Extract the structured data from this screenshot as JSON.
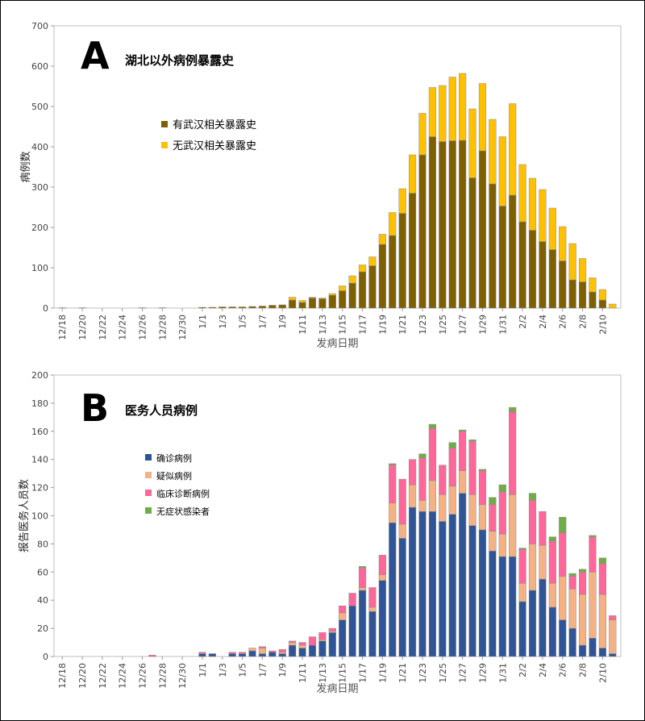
{
  "chart_data": [
    {
      "type": "bar",
      "stacked": true,
      "panel_letter": "A",
      "title": "湖北以外病例暴露史",
      "xlabel": "发病日期",
      "ylabel": "病例数",
      "ylim": [
        0,
        700
      ],
      "yticks": [
        0,
        100,
        200,
        300,
        400,
        500,
        600,
        700
      ],
      "grid": false,
      "legend_placement": "top-left",
      "tick_labels": [
        "12/18",
        "12/20",
        "12/22",
        "12/24",
        "12/26",
        "12/28",
        "12/30",
        "1/1",
        "1/3",
        "1/5",
        "1/7",
        "1/9",
        "1/11",
        "1/13",
        "1/15",
        "1/17",
        "1/19",
        "1/21",
        "1/23",
        "1/25",
        "1/27",
        "1/29",
        "1/31",
        "2/2",
        "2/4",
        "2/6",
        "2/8",
        "2/10"
      ],
      "categories": [
        "12/18",
        "12/19",
        "12/20",
        "12/21",
        "12/22",
        "12/23",
        "12/24",
        "12/25",
        "12/26",
        "12/27",
        "12/28",
        "12/29",
        "12/30",
        "12/31",
        "1/1",
        "1/2",
        "1/3",
        "1/4",
        "1/5",
        "1/6",
        "1/7",
        "1/8",
        "1/9",
        "1/10",
        "1/11",
        "1/12",
        "1/13",
        "1/14",
        "1/15",
        "1/16",
        "1/17",
        "1/18",
        "1/19",
        "1/20",
        "1/21",
        "1/22",
        "1/23",
        "1/24",
        "1/25",
        "1/26",
        "1/27",
        "1/28",
        "1/29",
        "1/30",
        "1/31",
        "2/1",
        "2/2",
        "2/3",
        "2/4",
        "2/5",
        "2/6",
        "2/7",
        "2/8",
        "2/9",
        "2/10",
        "2/11"
      ],
      "series": [
        {
          "name": "有武汉相关暴露史",
          "color": "#7f6000",
          "values": [
            1,
            0,
            1,
            0,
            0,
            0,
            0,
            0,
            1,
            0,
            1,
            0,
            0,
            0,
            2,
            2,
            3,
            3,
            3,
            4,
            5,
            7,
            8,
            20,
            14,
            25,
            23,
            32,
            43,
            62,
            90,
            105,
            158,
            180,
            235,
            285,
            380,
            425,
            413,
            415,
            416,
            323,
            390,
            308,
            253,
            280,
            214,
            193,
            165,
            145,
            117,
            70,
            65,
            40,
            20,
            0
          ]
        },
        {
          "name": "无武汉相关暴露史",
          "color": "#ffc000",
          "values": [
            0,
            0,
            0,
            0,
            0,
            0,
            0,
            0,
            0,
            0,
            0,
            0,
            0,
            0,
            0,
            0,
            0,
            0,
            0,
            0,
            0,
            0,
            0,
            7,
            5,
            2,
            2,
            4,
            12,
            18,
            17,
            22,
            25,
            57,
            61,
            95,
            103,
            122,
            139,
            158,
            166,
            171,
            167,
            160,
            172,
            227,
            142,
            129,
            129,
            103,
            85,
            90,
            58,
            35,
            26,
            10
          ]
        }
      ]
    },
    {
      "type": "bar",
      "stacked": true,
      "panel_letter": "B",
      "title": "医务人员病例",
      "xlabel": "发病日期",
      "ylabel": "报告医务人员数",
      "ylim": [
        0,
        200
      ],
      "yticks": [
        0,
        20,
        40,
        60,
        80,
        100,
        120,
        140,
        160,
        180,
        200
      ],
      "grid": false,
      "legend_placement": "top-left",
      "tick_labels": [
        "12/18",
        "12/20",
        "12/22",
        "12/24",
        "12/26",
        "12/28",
        "12/30",
        "1/1",
        "1/3",
        "1/5",
        "1/7",
        "1/9",
        "1/11",
        "1/13",
        "1/15",
        "1/17",
        "1/19",
        "1/21",
        "1/23",
        "1/25",
        "1/27",
        "1/29",
        "1/31",
        "2/2",
        "2/4",
        "2/6",
        "2/8",
        "2/10"
      ],
      "categories": [
        "12/18",
        "12/19",
        "12/20",
        "12/21",
        "12/22",
        "12/23",
        "12/24",
        "12/25",
        "12/26",
        "12/27",
        "12/28",
        "12/29",
        "12/30",
        "12/31",
        "1/1",
        "1/2",
        "1/3",
        "1/4",
        "1/5",
        "1/6",
        "1/7",
        "1/8",
        "1/9",
        "1/10",
        "1/11",
        "1/12",
        "1/13",
        "1/14",
        "1/15",
        "1/16",
        "1/17",
        "1/18",
        "1/19",
        "1/20",
        "1/21",
        "1/22",
        "1/23",
        "1/24",
        "1/25",
        "1/26",
        "1/27",
        "1/28",
        "1/29",
        "1/30",
        "1/31",
        "2/1",
        "2/2",
        "2/3",
        "2/4",
        "2/5",
        "2/6",
        "2/7",
        "2/8",
        "2/9",
        "2/10",
        "2/11"
      ],
      "series": [
        {
          "name": "确诊病例",
          "color": "#2f5597",
          "values": [
            0,
            0,
            0,
            0,
            0,
            0,
            0,
            0,
            0,
            0,
            0,
            0,
            0,
            0,
            2,
            2,
            0,
            2,
            2,
            4,
            2,
            3,
            2,
            8,
            6,
            8,
            11,
            17,
            26,
            36,
            47,
            32,
            54,
            95,
            84,
            106,
            103,
            103,
            96,
            101,
            116,
            93,
            90,
            75,
            71,
            71,
            39,
            47,
            55,
            35,
            26,
            20,
            8,
            13,
            6,
            2
          ]
        },
        {
          "name": "疑似病例",
          "color": "#f4b183",
          "values": [
            0,
            0,
            0,
            0,
            0,
            0,
            0,
            0,
            0,
            0,
            0,
            0,
            0,
            0,
            0,
            0,
            0,
            0,
            0,
            2,
            4,
            0,
            1,
            2,
            2,
            0,
            1,
            1,
            5,
            0,
            2,
            3,
            4,
            14,
            10,
            16,
            8,
            22,
            19,
            20,
            16,
            22,
            18,
            14,
            16,
            44,
            13,
            33,
            24,
            17,
            31,
            28,
            36,
            47,
            38,
            24
          ]
        },
        {
          "name": "临床诊断病例",
          "color": "#ff6699",
          "values": [
            0,
            0,
            0,
            0,
            0,
            0,
            0,
            0,
            0,
            1,
            0,
            0,
            0,
            0,
            1,
            0,
            0,
            1,
            1,
            0,
            1,
            1,
            2,
            1,
            2,
            6,
            5,
            2,
            5,
            9,
            14,
            14,
            14,
            27,
            32,
            18,
            30,
            37,
            21,
            27,
            28,
            38,
            24,
            19,
            30,
            59,
            24,
            31,
            24,
            30,
            31,
            9,
            16,
            25,
            22,
            3
          ]
        },
        {
          "name": "无症状感染者",
          "color": "#70ad47",
          "values": [
            0,
            0,
            0,
            0,
            0,
            0,
            0,
            0,
            0,
            0,
            0,
            0,
            0,
            0,
            0,
            0,
            0,
            0,
            0,
            0,
            0,
            0,
            0,
            0,
            0,
            0,
            0,
            0,
            0,
            0,
            1,
            0,
            0,
            1,
            0,
            0,
            3,
            3,
            0,
            4,
            1,
            1,
            1,
            5,
            5,
            3,
            1,
            5,
            0,
            3,
            11,
            2,
            2,
            1,
            4,
            0
          ]
        }
      ]
    }
  ]
}
